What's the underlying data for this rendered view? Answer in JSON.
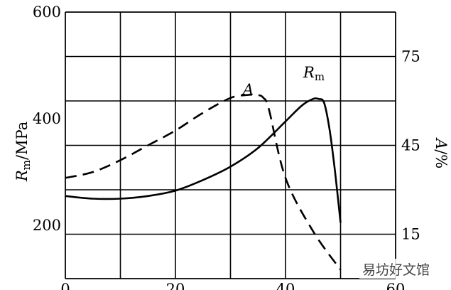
{
  "chart_data": {
    "type": "line",
    "x_ticks": [
      0,
      20,
      40,
      60
    ],
    "xlim": [
      0,
      60
    ],
    "left_axis": {
      "label_main": "R",
      "label_sub": "m",
      "label_rest": "/MPa",
      "ticks": [
        200,
        400,
        600
      ],
      "ylim": [
        100,
        600
      ]
    },
    "right_axis": {
      "label_main": "A",
      "label_rest": "/%",
      "ticks": [
        15,
        45,
        75
      ],
      "ylim": [
        0,
        90
      ]
    },
    "grid": true,
    "series": [
      {
        "name_main": "R",
        "name_sub": "m",
        "axis": "left",
        "style": "solid",
        "x": [
          0,
          5,
          10,
          15,
          20,
          25,
          30,
          35,
          40,
          43,
          45,
          46,
          47,
          48,
          49,
          50
        ],
        "y": [
          255,
          250,
          250,
          255,
          265,
          285,
          310,
          345,
          395,
          425,
          437,
          437,
          430,
          380,
          300,
          205
        ]
      },
      {
        "name_main": "A",
        "axis": "right",
        "style": "dashed",
        "x": [
          0,
          5,
          10,
          15,
          20,
          25,
          30,
          33,
          35,
          36,
          37,
          40,
          45,
          50
        ],
        "y": [
          34,
          36,
          40,
          45,
          50,
          56,
          61,
          62,
          62,
          61,
          57,
          34,
          16,
          3
        ]
      }
    ]
  },
  "watermark_text": "易坊好文馆"
}
